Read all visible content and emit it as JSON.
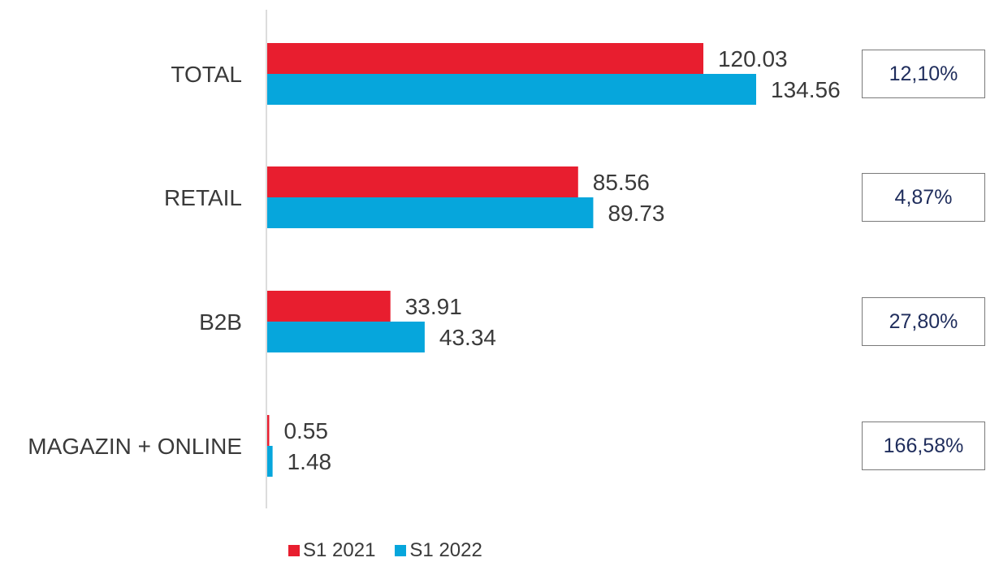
{
  "chart_data": {
    "type": "bar",
    "orientation": "horizontal",
    "categories": [
      "TOTAL",
      "RETAIL",
      "B2B",
      "MAGAZIN + ONLINE"
    ],
    "series": [
      {
        "name": "S1 2021",
        "color": "#e81e2f",
        "values": [
          120.03,
          85.56,
          33.91,
          0.55
        ],
        "labels": [
          "120.03",
          "85.56",
          "33.91",
          "0.55"
        ]
      },
      {
        "name": "S1 2022",
        "color": "#06a6dc",
        "values": [
          134.56,
          89.73,
          43.34,
          1.48
        ],
        "labels": [
          "134.56",
          "89.73",
          "43.34",
          "1.48"
        ]
      }
    ],
    "growth": [
      "12,10%",
      "4,87%",
      "27,80%",
      "166,58%"
    ],
    "xlim": [
      0,
      134.56
    ],
    "legend_position": "bottom",
    "grid": false
  }
}
